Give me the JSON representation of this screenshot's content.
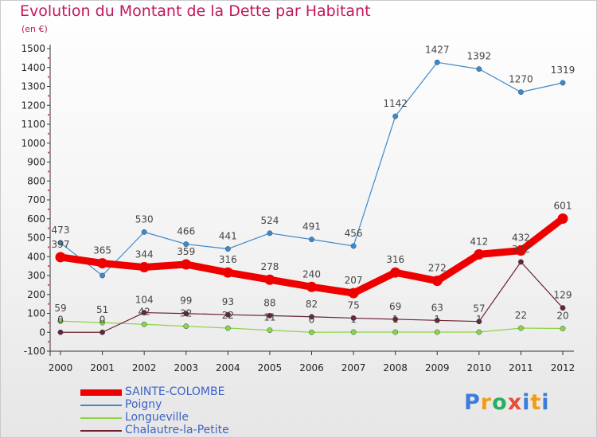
{
  "title": "Evolution du Montant de la Dette par Habitant",
  "subtitle": "(en €)",
  "logo_text": "Proxiti",
  "chart_data": {
    "type": "line",
    "title": "Evolution du Montant de la Dette par Habitant",
    "subtitle": "(en €)",
    "x": [
      "2000",
      "2001",
      "2002",
      "2003",
      "2004",
      "2005",
      "2006",
      "2007",
      "2008",
      "2009",
      "2010",
      "2011",
      "2012"
    ],
    "ylim": [
      -100,
      1500
    ],
    "yticks": [
      -100,
      0,
      100,
      200,
      300,
      400,
      500,
      600,
      700,
      800,
      900,
      1000,
      1100,
      1200,
      1300,
      1400,
      1500
    ],
    "grid": false,
    "legend_position": "bottom-left",
    "series": [
      {
        "name": "SAINTE-COLOMBE",
        "color": "#ee0000",
        "emphasis": true,
        "values": [
          397,
          365,
          344,
          359,
          316,
          278,
          240,
          207,
          316,
          272,
          412,
          432,
          601
        ],
        "labels": [
          "397",
          "365",
          "344",
          "359",
          "316",
          "278",
          "240",
          "207",
          "316",
          "272",
          "412",
          "432",
          "601"
        ]
      },
      {
        "name": "Poigny",
        "color": "#3f88c8",
        "values": [
          473,
          300,
          530,
          466,
          441,
          524,
          491,
          456,
          1142,
          1427,
          1392,
          1270,
          1319
        ],
        "labels": [
          "473",
          "",
          "530",
          "466",
          "441",
          "524",
          "491",
          "456",
          "1142",
          "1427",
          "1392",
          "1270",
          "1319"
        ]
      },
      {
        "name": "Longueville",
        "color": "#8fd444",
        "values": [
          59,
          51,
          42,
          32,
          22,
          11,
          0,
          1,
          1,
          1,
          1,
          22,
          20
        ],
        "labels": [
          "59",
          "51",
          "42",
          "32",
          "22",
          "11",
          "0",
          "1",
          "1",
          "1",
          "1",
          "22",
          "20"
        ]
      },
      {
        "name": "Chalautre-la-Petite",
        "color": "#6d2130",
        "values": [
          0,
          0,
          104,
          99,
          93,
          88,
          82,
          75,
          69,
          63,
          57,
          372,
          129
        ],
        "labels": [
          "0",
          "0",
          "104",
          "99",
          "93",
          "88",
          "82",
          "75",
          "69",
          "63",
          "57",
          "372",
          "129"
        ]
      }
    ]
  }
}
